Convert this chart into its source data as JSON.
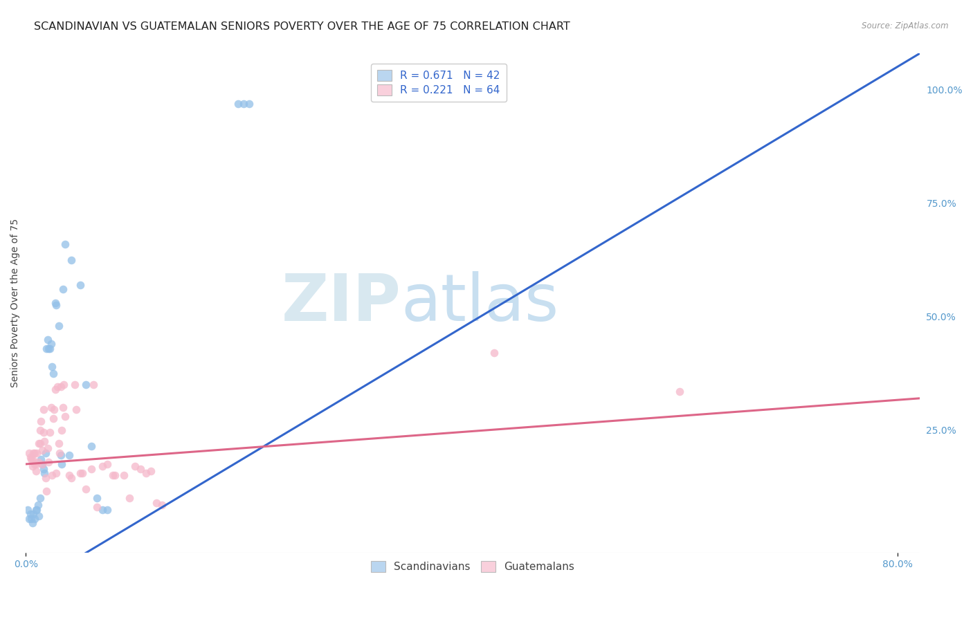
{
  "title": "SCANDINAVIAN VS GUATEMALAN SENIORS POVERTY OVER THE AGE OF 75 CORRELATION CHART",
  "source": "Source: ZipAtlas.com",
  "ylabel": "Seniors Poverty Over the Age of 75",
  "scandinavian_R": 0.671,
  "scandinavian_N": 42,
  "guatemalan_R": 0.221,
  "guatemalan_N": 64,
  "blue_color": "#92bfe8",
  "pink_color": "#f5b8ca",
  "blue_line_color": "#3366cc",
  "pink_line_color": "#dd6688",
  "legend_blue_fill": "#bad6f0",
  "legend_pink_fill": "#f9d0dc",
  "background_color": "#ffffff",
  "grid_color": "#ddeef8",
  "title_fontsize": 11.5,
  "axis_label_fontsize": 10,
  "tick_fontsize": 10,
  "legend_fontsize": 11,
  "scatter_size": 70,
  "scatter_alpha": 0.75,
  "line_width": 2.2,
  "xlim": [
    0.0,
    0.82
  ],
  "ylim": [
    -0.02,
    1.08
  ],
  "x_ticks": [
    0.0,
    0.8
  ],
  "y_ticks_right": [
    1.0,
    0.75,
    0.5,
    0.25
  ],
  "y_tick_labels_right": [
    "100.0%",
    "75.0%",
    "50.0%",
    "25.0%"
  ],
  "blue_line_x": [
    0.0,
    0.82
  ],
  "blue_line_y": [
    -0.1,
    1.08
  ],
  "pink_line_x": [
    0.0,
    0.82
  ],
  "pink_line_y": [
    0.175,
    0.32
  ],
  "scandinavian_points": [
    [
      0.002,
      0.075
    ],
    [
      0.003,
      0.055
    ],
    [
      0.004,
      0.065
    ],
    [
      0.005,
      0.055
    ],
    [
      0.006,
      0.045
    ],
    [
      0.007,
      0.065
    ],
    [
      0.008,
      0.055
    ],
    [
      0.009,
      0.075
    ],
    [
      0.01,
      0.075
    ],
    [
      0.011,
      0.085
    ],
    [
      0.012,
      0.06
    ],
    [
      0.013,
      0.1
    ],
    [
      0.014,
      0.185
    ],
    [
      0.015,
      0.175
    ],
    [
      0.016,
      0.165
    ],
    [
      0.017,
      0.155
    ],
    [
      0.018,
      0.2
    ],
    [
      0.019,
      0.43
    ],
    [
      0.02,
      0.45
    ],
    [
      0.021,
      0.43
    ],
    [
      0.022,
      0.43
    ],
    [
      0.023,
      0.44
    ],
    [
      0.024,
      0.39
    ],
    [
      0.025,
      0.375
    ],
    [
      0.027,
      0.53
    ],
    [
      0.028,
      0.525
    ],
    [
      0.03,
      0.48
    ],
    [
      0.032,
      0.195
    ],
    [
      0.033,
      0.175
    ],
    [
      0.034,
      0.56
    ],
    [
      0.036,
      0.66
    ],
    [
      0.04,
      0.195
    ],
    [
      0.042,
      0.625
    ],
    [
      0.05,
      0.57
    ],
    [
      0.055,
      0.35
    ],
    [
      0.06,
      0.215
    ],
    [
      0.065,
      0.1
    ],
    [
      0.07,
      0.075
    ],
    [
      0.075,
      0.075
    ],
    [
      0.195,
      0.97
    ],
    [
      0.2,
      0.97
    ],
    [
      0.205,
      0.97
    ]
  ],
  "guatemalan_points": [
    [
      0.003,
      0.2
    ],
    [
      0.004,
      0.19
    ],
    [
      0.005,
      0.185
    ],
    [
      0.006,
      0.17
    ],
    [
      0.006,
      0.185
    ],
    [
      0.007,
      0.2
    ],
    [
      0.008,
      0.175
    ],
    [
      0.008,
      0.2
    ],
    [
      0.009,
      0.16
    ],
    [
      0.01,
      0.175
    ],
    [
      0.01,
      0.2
    ],
    [
      0.011,
      0.18
    ],
    [
      0.012,
      0.22
    ],
    [
      0.013,
      0.25
    ],
    [
      0.013,
      0.22
    ],
    [
      0.014,
      0.27
    ],
    [
      0.015,
      0.205
    ],
    [
      0.015,
      0.175
    ],
    [
      0.016,
      0.295
    ],
    [
      0.016,
      0.245
    ],
    [
      0.017,
      0.225
    ],
    [
      0.018,
      0.145
    ],
    [
      0.019,
      0.115
    ],
    [
      0.02,
      0.21
    ],
    [
      0.021,
      0.18
    ],
    [
      0.022,
      0.245
    ],
    [
      0.023,
      0.3
    ],
    [
      0.024,
      0.15
    ],
    [
      0.025,
      0.275
    ],
    [
      0.026,
      0.295
    ],
    [
      0.027,
      0.34
    ],
    [
      0.028,
      0.155
    ],
    [
      0.029,
      0.345
    ],
    [
      0.03,
      0.22
    ],
    [
      0.031,
      0.2
    ],
    [
      0.032,
      0.345
    ],
    [
      0.033,
      0.25
    ],
    [
      0.034,
      0.3
    ],
    [
      0.035,
      0.35
    ],
    [
      0.036,
      0.28
    ],
    [
      0.04,
      0.15
    ],
    [
      0.042,
      0.145
    ],
    [
      0.045,
      0.35
    ],
    [
      0.046,
      0.295
    ],
    [
      0.05,
      0.155
    ],
    [
      0.052,
      0.155
    ],
    [
      0.055,
      0.12
    ],
    [
      0.06,
      0.165
    ],
    [
      0.062,
      0.35
    ],
    [
      0.065,
      0.08
    ],
    [
      0.07,
      0.17
    ],
    [
      0.075,
      0.175
    ],
    [
      0.08,
      0.15
    ],
    [
      0.082,
      0.15
    ],
    [
      0.09,
      0.15
    ],
    [
      0.095,
      0.1
    ],
    [
      0.1,
      0.17
    ],
    [
      0.105,
      0.165
    ],
    [
      0.11,
      0.155
    ],
    [
      0.115,
      0.16
    ],
    [
      0.12,
      0.09
    ],
    [
      0.125,
      0.085
    ],
    [
      0.43,
      0.42
    ],
    [
      0.6,
      0.335
    ]
  ]
}
